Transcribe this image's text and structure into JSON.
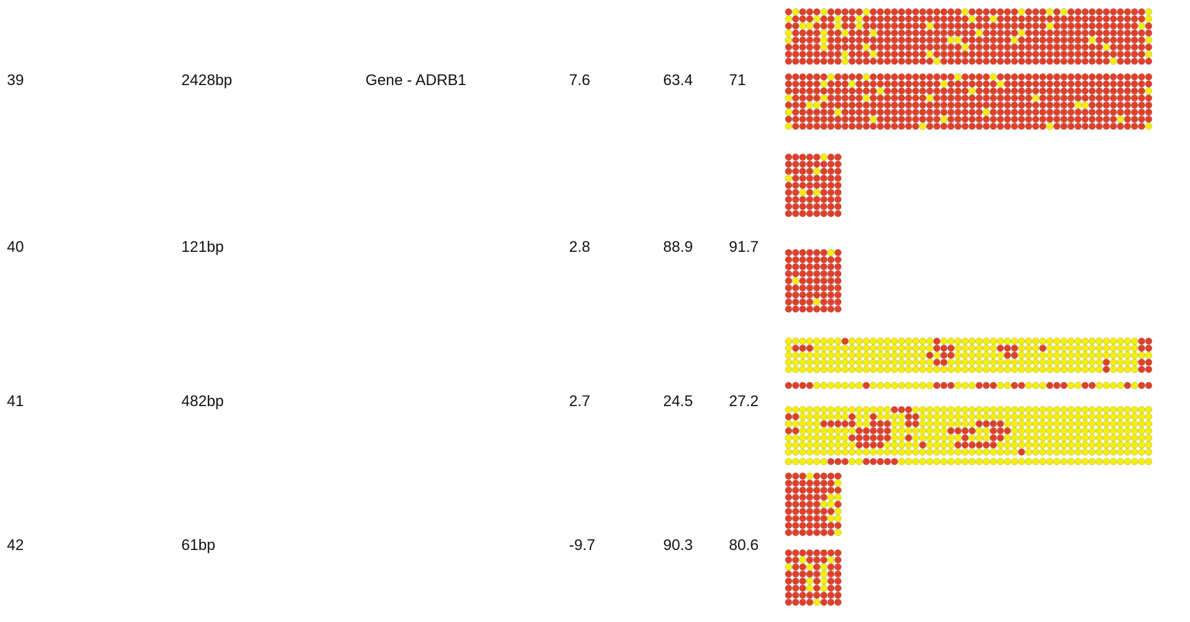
{
  "colors": {
    "methylated": "#e0402a",
    "unmethylated": "#f4f000",
    "stroke": "#777777"
  },
  "rows": [
    {
      "id": "39",
      "length": "2428bp",
      "gene": "Gene - ADRB1",
      "diff": "7.6",
      "a": "63.4",
      "b": "71",
      "panels": [
        [
          "RYRRRYRRRRRYRRRRRRRRRRRRRYRRRRRRRYRRRYRYRRRRRRRRRRRY",
          "YRRRYRRYRRYRRRRRRRRRRRRRRRYRRYRRRRRRRRRRRRRRRRRRRRRY",
          "RRYYRRRYRRYRRRRRRRRRYRRRRRRRRRRRRRRRRYRRRRRRRRRRRRYR",
          "YRRRRYRRYRRRYRRRRRRRRRRRRRRYRRRRRYRRRRRRRRRRRRRRRRRR",
          "YRRRRYRRRRRRRRRRRRRRRRRYYRRRRRRRYRRRRRRRRRRYRRRRRRRY",
          "RRRRRYRRRRRYRRRRRRRRRRRRRYRRRRRRRRRRRRRRRRRRRYRRRRRR",
          "RRRRRRRRYRRRYRRRRRRRYRRRRRRRRRRRRRRRRRRRRRRRRRRRRRRY",
          "RRRRRRRRYRRRRRRRRRRRRYRRRRRRRRRRRRRRRRRRRRRRRRYRRRRR"
        ],
        [
          "RRRRRRYRRRRYRRRRRRRRRRRRYRRRRYRRRRRRRRRRRRRRRRRRRRRR",
          "RRRRRYRRRYRRRRRRRRRRRRYRRRRRRRYRRRRRRRRRRRRRRRRRRRRR",
          "RRRRRRRRRRRRRYRRRRRRRRRRRRYRRRRRRRRRRRRRRRRRRRRRRRRY",
          "YRRRRYRRRRRYRRRRRRRRYRRRRRRRRRRRRRRYRRRRRRRRRRRRRRRR",
          "RRRYYRRRRRRRRRRRRRRRRRRRRRRRRRRRRRRRRRRRRYYRRRRRRRRR",
          "YRRRRRRYRRRRRRRRRRRRRRRRRRRRYRRRRRRRRRRRRRRRRRRRRRRR",
          "RRRRRRRRRRRRYRRRRRRRRRYRRRRRRRRRRRRRRRRRRRRRRRRYRRRR",
          "YRRRRRRRRRRRRRRRRRRYRRRRRRRRRRRRRRRRRYRRRRRRRRRRRRRY"
        ]
      ]
    },
    {
      "id": "40",
      "length": "121bp",
      "gene": "",
      "diff": "2.8",
      "a": "88.9",
      "b": "91.7",
      "panels": [
        [
          "RRRRRYRR",
          "RRRRRRRR",
          "RRRRYRRR",
          "YRRRRRRR",
          "RRRRRRRR",
          "RRYRYRRR",
          "RRRRRRRR",
          "RRRRRRRR",
          "RRRRRRRR"
        ],
        [
          "RRRRRRYR",
          "RRRRRRRR",
          "RRRRRRRR",
          "RRRRRRRR",
          "RYRRRRRR",
          "RRRRRRRR",
          "RRRRRRRR",
          "RRRRYRRR",
          "RRRRRRRR"
        ]
      ]
    },
    {
      "id": "41",
      "length": "482bp",
      "gene": "",
      "diff": "2.7",
      "a": "24.5",
      "b": "27.2",
      "panels": [
        [
          "YYYYYYYYRYYYYYYYYYYYYRYYYYYYYYYYYYYYYYYYYYYYYYYYYYRR",
          "YRRRYYYYYYYYYYYYYYYYYRRRYYYYYYRRRYYYRYYYYYYYYYYYYYRR",
          "YYYYYYYYYYYYYYYYYYYYRYRRYYYYYYYRRYYYYYYYYYYYYYYYYYYY",
          "YYYYYYYYYYYYYYYYYYYYYRRYYYYYYYYYYYYYYYYYYYYYYRYYYYRR",
          "YYYYYYYYYYYYYYYYYYYYYYYYYYYYYYYYYYYYYYYYYYYYYRYYYYRR"
        ],
        [
          "RRRRYYYYYYYRYYYYYYYYYRRRYYYRRRYYRRYYYRRRYYRRYYYYRYRR"
        ],
        [
          "YYYYYYYYYYYYYYYRRRYYYYYYYYYYYYYYYYYYYYYYYYYYYYYYYYYY",
          "RRYYYYYYYRYYRYYYYRRYYYYYYYYYYYYYYYYYYYYYYYYYYYYYYYYY",
          "YYYYYRRRRRYYRRRYYRRYYYYYYYYRRRRYYYYYYYYYYYYYYYYYYYYY",
          "RRYYYYYYYYRRRRRYYYYYYYYRRRRYYRRRYYYYYYYYYYYYYYYYYYYY",
          "YYYYYYYYYRRRRRRYYRYYYYYYYRYYYRRYYYYYYYYYYYYYYYYYYYYY",
          "YYYYYYYYYYRRRRYYYYYRYYYYRRRRRRYYYYYYYYYYYYYYYYYYYYYY",
          "YYYYYYYYYYYYYYYYYYYYYYYYYYYYYYYYYRYYYYYYYYYYYYYYYYYY"
        ],
        [
          "YYYYYYRRRYYRRRRRYYYYYYYYYYYYYYYYYYYYYYYYYYYYYYYYYYYY"
        ]
      ]
    },
    {
      "id": "42",
      "length": "61bp",
      "gene": "",
      "diff": "-9.7",
      "a": "90.3",
      "b": "80.6",
      "panels": [
        [
          "RRRYRRRR",
          "RRRRRRRY",
          "RRRRRRRR",
          "RRRRRRYY",
          "RRRRRYYR",
          "RRRRRRRY",
          "RRRRRRYY",
          "RRRRRRRR",
          "RRRRRRRY"
        ],
        [
          "RRRRRRRR",
          "RRYRRRYR",
          "YRRYRYRR",
          "RRRRRYRR",
          "RRRYRYRR",
          "RRRYRYRR",
          "RRRRRRRR",
          "RRRRYRRR"
        ]
      ]
    }
  ]
}
